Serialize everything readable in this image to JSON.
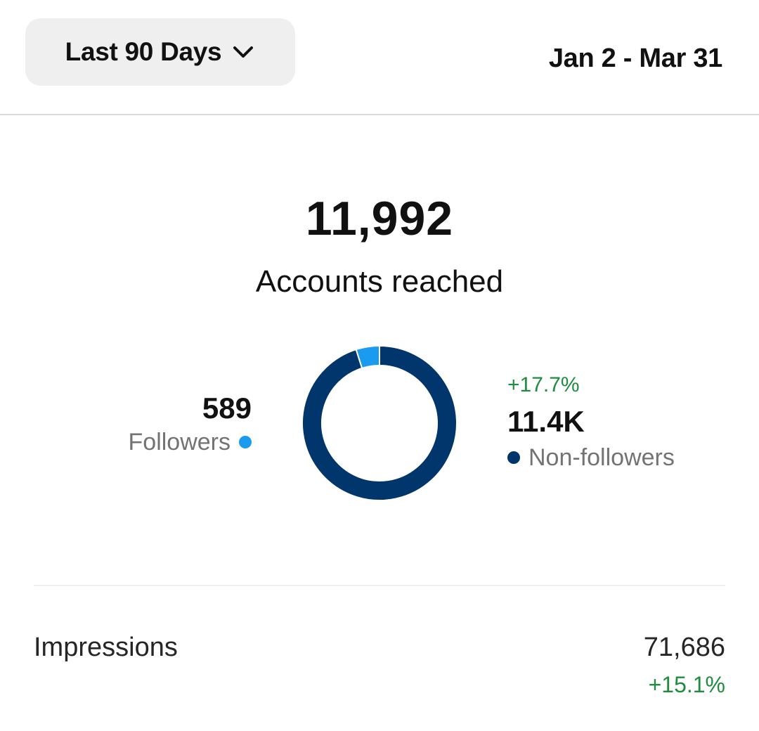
{
  "header": {
    "range_label": "Last 90 Days",
    "date_range": "Jan 2 - Mar 31",
    "chevron_icon": "chevron-down-icon"
  },
  "summary": {
    "total_value": "11,992",
    "total_label": "Accounts reached"
  },
  "breakdown": {
    "followers": {
      "value": "589",
      "label": "Followers",
      "color": "#1a9bf0"
    },
    "non_followers": {
      "change": "+17.7%",
      "value": "11.4K",
      "label": "Non-followers",
      "color": "#00366b"
    }
  },
  "chart_data": {
    "type": "pie",
    "categories": [
      "Followers",
      "Non-followers"
    ],
    "values": [
      589,
      11403
    ],
    "colors": [
      "#1a9bf0",
      "#00366b"
    ],
    "donut": true
  },
  "metrics": {
    "impressions": {
      "label": "Impressions",
      "value": "71,686",
      "change": "+15.1%",
      "change_color": "#1e8e3e"
    }
  }
}
